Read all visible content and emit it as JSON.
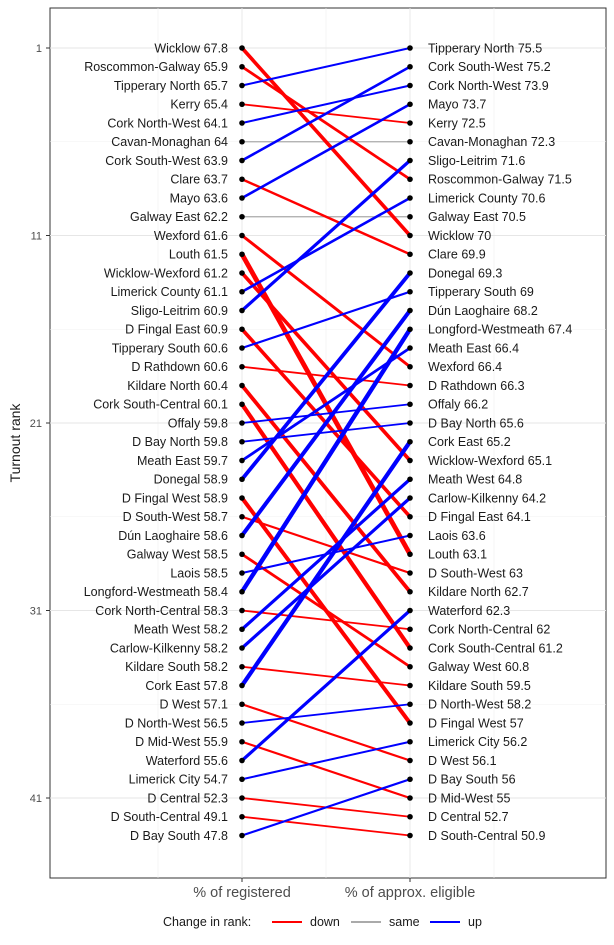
{
  "chart_data": {
    "type": "slope",
    "ylabel": "Turnout rank",
    "y_ticks": [
      1,
      11,
      21,
      31,
      41
    ],
    "y_range": [
      1,
      43
    ],
    "categories": [
      "% of registered",
      "% of approx. eligible"
    ],
    "legend": {
      "title": "Change in rank:",
      "position": "bottom",
      "items": [
        {
          "key": "down",
          "label": "down",
          "color": "#ff0000"
        },
        {
          "key": "same",
          "label": "same",
          "color": "#aaaaaa"
        },
        {
          "key": "up",
          "label": "up",
          "color": "#0000ff"
        }
      ]
    },
    "left": [
      {
        "name": "Wicklow",
        "value": "67.8"
      },
      {
        "name": "Roscommon-Galway",
        "value": "65.9"
      },
      {
        "name": "Tipperary North",
        "value": "65.7"
      },
      {
        "name": "Kerry",
        "value": "65.4"
      },
      {
        "name": "Cork North-West",
        "value": "64.1"
      },
      {
        "name": "Cavan-Monaghan",
        "value": "64"
      },
      {
        "name": "Cork South-West",
        "value": "63.9"
      },
      {
        "name": "Clare",
        "value": "63.7"
      },
      {
        "name": "Mayo",
        "value": "63.6"
      },
      {
        "name": "Galway East",
        "value": "62.2"
      },
      {
        "name": "Wexford",
        "value": "61.6"
      },
      {
        "name": "Louth",
        "value": "61.5"
      },
      {
        "name": "Wicklow-Wexford",
        "value": "61.2"
      },
      {
        "name": "Limerick County",
        "value": "61.1"
      },
      {
        "name": "Sligo-Leitrim",
        "value": "60.9"
      },
      {
        "name": "D Fingal East",
        "value": "60.9"
      },
      {
        "name": "Tipperary South",
        "value": "60.6"
      },
      {
        "name": "D Rathdown",
        "value": "60.6"
      },
      {
        "name": "Kildare North",
        "value": "60.4"
      },
      {
        "name": "Cork South-Central",
        "value": "60.1"
      },
      {
        "name": "Offaly",
        "value": "59.8"
      },
      {
        "name": "D Bay North",
        "value": "59.8"
      },
      {
        "name": "Meath East",
        "value": "59.7"
      },
      {
        "name": "Donegal",
        "value": "58.9"
      },
      {
        "name": "D Fingal West",
        "value": "58.9"
      },
      {
        "name": "D South-West",
        "value": "58.7"
      },
      {
        "name": "Dún Laoghaire",
        "value": "58.6"
      },
      {
        "name": "Galway West",
        "value": "58.5"
      },
      {
        "name": "Laois",
        "value": "58.5"
      },
      {
        "name": "Longford-Westmeath",
        "value": "58.4"
      },
      {
        "name": "Cork North-Central",
        "value": "58.3"
      },
      {
        "name": "Meath West",
        "value": "58.2"
      },
      {
        "name": "Carlow-Kilkenny",
        "value": "58.2"
      },
      {
        "name": "Kildare South",
        "value": "58.2"
      },
      {
        "name": "Cork East",
        "value": "57.8"
      },
      {
        "name": "D West",
        "value": "57.1"
      },
      {
        "name": "D North-West",
        "value": "56.5"
      },
      {
        "name": "D Mid-West",
        "value": "55.9"
      },
      {
        "name": "Waterford",
        "value": "55.6"
      },
      {
        "name": "Limerick City",
        "value": "54.7"
      },
      {
        "name": "D Central",
        "value": "52.3"
      },
      {
        "name": "D South-Central",
        "value": "49.1"
      },
      {
        "name": "D Bay South",
        "value": "47.8"
      }
    ],
    "right": [
      {
        "name": "Tipperary North",
        "value": "75.5"
      },
      {
        "name": "Cork South-West",
        "value": "75.2"
      },
      {
        "name": "Cork North-West",
        "value": "73.9"
      },
      {
        "name": "Mayo",
        "value": "73.7"
      },
      {
        "name": "Kerry",
        "value": "72.5"
      },
      {
        "name": "Cavan-Monaghan",
        "value": "72.3"
      },
      {
        "name": "Sligo-Leitrim",
        "value": "71.6"
      },
      {
        "name": "Roscommon-Galway",
        "value": "71.5"
      },
      {
        "name": "Limerick County",
        "value": "70.6"
      },
      {
        "name": "Galway East",
        "value": "70.5"
      },
      {
        "name": "Wicklow",
        "value": "70"
      },
      {
        "name": "Clare",
        "value": "69.9"
      },
      {
        "name": "Donegal",
        "value": "69.3"
      },
      {
        "name": "Tipperary South",
        "value": "69"
      },
      {
        "name": "Dún Laoghaire",
        "value": "68.2"
      },
      {
        "name": "Longford-Westmeath",
        "value": "67.4"
      },
      {
        "name": "Meath East",
        "value": "66.4"
      },
      {
        "name": "Wexford",
        "value": "66.4"
      },
      {
        "name": "D Rathdown",
        "value": "66.3"
      },
      {
        "name": "Offaly",
        "value": "66.2"
      },
      {
        "name": "D Bay North",
        "value": "65.6"
      },
      {
        "name": "Cork East",
        "value": "65.2"
      },
      {
        "name": "Wicklow-Wexford",
        "value": "65.1"
      },
      {
        "name": "Meath West",
        "value": "64.8"
      },
      {
        "name": "Carlow-Kilkenny",
        "value": "64.2"
      },
      {
        "name": "D Fingal East",
        "value": "64.1"
      },
      {
        "name": "Laois",
        "value": "63.6"
      },
      {
        "name": "Louth",
        "value": "63.1"
      },
      {
        "name": "D South-West",
        "value": "63"
      },
      {
        "name": "Kildare North",
        "value": "62.7"
      },
      {
        "name": "Waterford",
        "value": "62.3"
      },
      {
        "name": "Cork North-Central",
        "value": "62"
      },
      {
        "name": "Cork South-Central",
        "value": "61.2"
      },
      {
        "name": "Galway West",
        "value": "60.8"
      },
      {
        "name": "Kildare South",
        "value": "59.5"
      },
      {
        "name": "D North-West",
        "value": "58.2"
      },
      {
        "name": "D Fingal West",
        "value": "57"
      },
      {
        "name": "Limerick City",
        "value": "56.2"
      },
      {
        "name": "D West",
        "value": "56.1"
      },
      {
        "name": "D Bay South",
        "value": "56"
      },
      {
        "name": "D Mid-West",
        "value": "55"
      },
      {
        "name": "D Central",
        "value": "52.7"
      },
      {
        "name": "D South-Central",
        "value": "50.9"
      }
    ]
  }
}
